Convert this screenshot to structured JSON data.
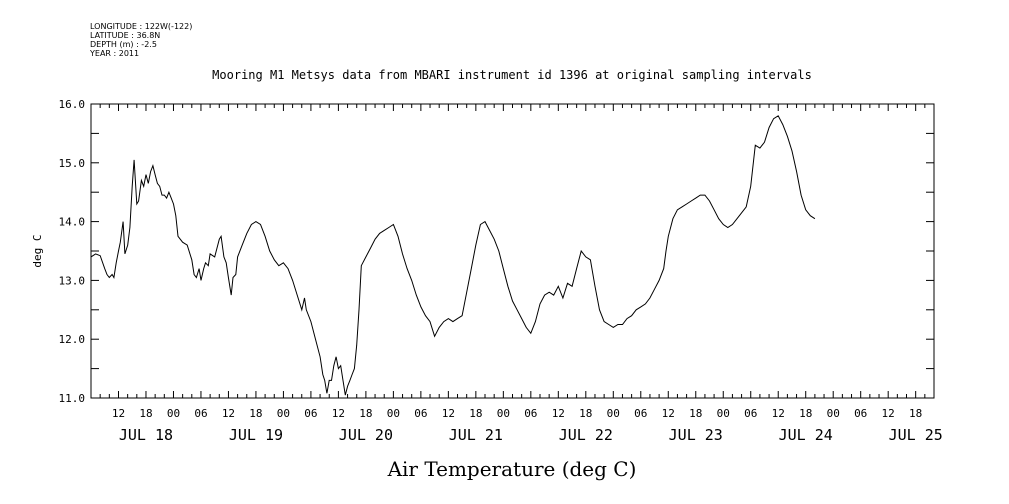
{
  "meta": {
    "longitude": "LONGITUDE : 122W(-122)",
    "latitude": "LATITUDE : 36.8N",
    "depth": "DEPTH (m) : -2.5",
    "year": "YEAR : 2011"
  },
  "chart_data": {
    "type": "line",
    "title": "Mooring M1 Metsys data from MBARI instrument id 1396 at original sampling intervals",
    "xlabel": "Air Temperature (deg C)",
    "ylabel": "deg C",
    "ylim": [
      11.0,
      16.0
    ],
    "xlim_hours": [
      0,
      184
    ],
    "yticks": [
      "11.0",
      "12.0",
      "13.0",
      "14.0",
      "15.0",
      "16.0"
    ],
    "hour_ticks": [
      {
        "h": 6,
        "label": "12"
      },
      {
        "h": 12,
        "label": "18"
      },
      {
        "h": 18,
        "label": "00"
      },
      {
        "h": 24,
        "label": "06"
      },
      {
        "h": 30,
        "label": "12"
      },
      {
        "h": 36,
        "label": "18"
      },
      {
        "h": 42,
        "label": "00"
      },
      {
        "h": 48,
        "label": "06"
      },
      {
        "h": 54,
        "label": "12"
      },
      {
        "h": 60,
        "label": "18"
      },
      {
        "h": 66,
        "label": "00"
      },
      {
        "h": 72,
        "label": "06"
      },
      {
        "h": 78,
        "label": "12"
      },
      {
        "h": 84,
        "label": "18"
      },
      {
        "h": 90,
        "label": "00"
      },
      {
        "h": 96,
        "label": "06"
      },
      {
        "h": 102,
        "label": "12"
      },
      {
        "h": 108,
        "label": "18"
      },
      {
        "h": 114,
        "label": "00"
      },
      {
        "h": 120,
        "label": "06"
      },
      {
        "h": 126,
        "label": "12"
      },
      {
        "h": 132,
        "label": "18"
      },
      {
        "h": 138,
        "label": "00"
      },
      {
        "h": 144,
        "label": "06"
      },
      {
        "h": 150,
        "label": "12"
      },
      {
        "h": 156,
        "label": "18"
      },
      {
        "h": 162,
        "label": "00"
      },
      {
        "h": 168,
        "label": "06"
      },
      {
        "h": 174,
        "label": "12"
      },
      {
        "h": 180,
        "label": "18"
      }
    ],
    "day_labels": [
      {
        "h": 12,
        "label": "JUL 18"
      },
      {
        "h": 36,
        "label": "JUL 19"
      },
      {
        "h": 60,
        "label": "JUL 20"
      },
      {
        "h": 84,
        "label": "JUL 21"
      },
      {
        "h": 108,
        "label": "JUL 22"
      },
      {
        "h": 132,
        "label": "JUL 23"
      },
      {
        "h": 156,
        "label": "JUL 24"
      },
      {
        "h": 180,
        "label": "JUL 25"
      }
    ],
    "series": [
      {
        "color": "#000000",
        "points": [
          [
            0.0,
            13.4
          ],
          [
            1.0,
            13.45
          ],
          [
            2.0,
            13.42
          ],
          [
            3.0,
            13.2
          ],
          [
            3.5,
            13.1
          ],
          [
            4.0,
            13.05
          ],
          [
            4.6,
            13.1
          ],
          [
            5.0,
            13.05
          ],
          [
            5.5,
            13.3
          ],
          [
            6.0,
            13.5
          ],
          [
            6.4,
            13.65
          ],
          [
            7.0,
            14.0
          ],
          [
            7.4,
            13.45
          ],
          [
            8.0,
            13.6
          ],
          [
            8.5,
            13.9
          ],
          [
            9.0,
            14.6
          ],
          [
            9.4,
            15.05
          ],
          [
            10.0,
            14.3
          ],
          [
            10.4,
            14.35
          ],
          [
            11.0,
            14.7
          ],
          [
            11.5,
            14.6
          ],
          [
            12.0,
            14.8
          ],
          [
            12.5,
            14.65
          ],
          [
            13.0,
            14.85
          ],
          [
            13.5,
            14.95
          ],
          [
            14.0,
            14.8
          ],
          [
            14.5,
            14.65
          ],
          [
            15.0,
            14.6
          ],
          [
            15.5,
            14.45
          ],
          [
            16.0,
            14.45
          ],
          [
            16.5,
            14.4
          ],
          [
            17.0,
            14.5
          ],
          [
            17.5,
            14.4
          ],
          [
            18.0,
            14.3
          ],
          [
            18.5,
            14.1
          ],
          [
            19.0,
            13.75
          ],
          [
            20.0,
            13.65
          ],
          [
            21.0,
            13.6
          ],
          [
            22.0,
            13.35
          ],
          [
            22.5,
            13.1
          ],
          [
            23.0,
            13.05
          ],
          [
            23.6,
            13.2
          ],
          [
            24.0,
            13.0
          ],
          [
            24.6,
            13.2
          ],
          [
            25.0,
            13.3
          ],
          [
            25.6,
            13.25
          ],
          [
            26.0,
            13.45
          ],
          [
            27.0,
            13.4
          ],
          [
            28.0,
            13.7
          ],
          [
            28.4,
            13.75
          ],
          [
            29.0,
            13.4
          ],
          [
            29.5,
            13.3
          ],
          [
            30.0,
            13.05
          ],
          [
            30.6,
            12.75
          ],
          [
            31.0,
            13.05
          ],
          [
            31.6,
            13.1
          ],
          [
            32.0,
            13.4
          ],
          [
            33.0,
            13.6
          ],
          [
            34.0,
            13.8
          ],
          [
            35.0,
            13.95
          ],
          [
            36.0,
            14.0
          ],
          [
            37.0,
            13.95
          ],
          [
            38.0,
            13.75
          ],
          [
            39.0,
            13.5
          ],
          [
            40.0,
            13.35
          ],
          [
            41.0,
            13.25
          ],
          [
            42.0,
            13.3
          ],
          [
            43.0,
            13.2
          ],
          [
            44.0,
            13.0
          ],
          [
            45.0,
            12.75
          ],
          [
            46.0,
            12.5
          ],
          [
            46.6,
            12.7
          ],
          [
            47.0,
            12.5
          ],
          [
            48.0,
            12.3
          ],
          [
            49.0,
            12.0
          ],
          [
            50.0,
            11.7
          ],
          [
            50.6,
            11.4
          ],
          [
            51.0,
            11.3
          ],
          [
            51.5,
            11.08
          ],
          [
            52.0,
            11.3
          ],
          [
            52.5,
            11.3
          ],
          [
            53.0,
            11.55
          ],
          [
            53.5,
            11.7
          ],
          [
            54.0,
            11.5
          ],
          [
            54.5,
            11.55
          ],
          [
            55.0,
            11.3
          ],
          [
            55.5,
            11.05
          ],
          [
            56.0,
            11.2
          ],
          [
            56.5,
            11.3
          ],
          [
            57.0,
            11.4
          ],
          [
            57.5,
            11.5
          ],
          [
            58.0,
            11.9
          ],
          [
            58.5,
            12.5
          ],
          [
            59.0,
            13.25
          ],
          [
            60.0,
            13.4
          ],
          [
            61.0,
            13.55
          ],
          [
            62.0,
            13.7
          ],
          [
            63.0,
            13.8
          ],
          [
            64.0,
            13.85
          ],
          [
            65.0,
            13.9
          ],
          [
            66.0,
            13.95
          ],
          [
            67.0,
            13.75
          ],
          [
            68.0,
            13.45
          ],
          [
            69.0,
            13.2
          ],
          [
            70.0,
            13.0
          ],
          [
            71.0,
            12.75
          ],
          [
            72.0,
            12.55
          ],
          [
            73.0,
            12.4
          ],
          [
            74.0,
            12.3
          ],
          [
            75.0,
            12.05
          ],
          [
            76.0,
            12.2
          ],
          [
            77.0,
            12.3
          ],
          [
            78.0,
            12.35
          ],
          [
            79.0,
            12.3
          ],
          [
            80.0,
            12.35
          ],
          [
            81.0,
            12.4
          ],
          [
            82.0,
            12.8
          ],
          [
            83.0,
            13.2
          ],
          [
            84.0,
            13.6
          ],
          [
            85.0,
            13.95
          ],
          [
            86.0,
            14.0
          ],
          [
            87.0,
            13.85
          ],
          [
            88.0,
            13.7
          ],
          [
            89.0,
            13.5
          ],
          [
            90.0,
            13.2
          ],
          [
            91.0,
            12.9
          ],
          [
            92.0,
            12.65
          ],
          [
            93.0,
            12.5
          ],
          [
            94.0,
            12.35
          ],
          [
            95.0,
            12.2
          ],
          [
            96.0,
            12.1
          ],
          [
            97.0,
            12.3
          ],
          [
            98.0,
            12.6
          ],
          [
            99.0,
            12.75
          ],
          [
            100.0,
            12.8
          ],
          [
            101.0,
            12.75
          ],
          [
            102.0,
            12.9
          ],
          [
            103.0,
            12.7
          ],
          [
            104.0,
            12.95
          ],
          [
            105.0,
            12.9
          ],
          [
            106.0,
            13.2
          ],
          [
            107.0,
            13.5
          ],
          [
            108.0,
            13.4
          ],
          [
            109.0,
            13.35
          ],
          [
            110.0,
            12.9
          ],
          [
            111.0,
            12.5
          ],
          [
            112.0,
            12.3
          ],
          [
            113.0,
            12.25
          ],
          [
            114.0,
            12.2
          ],
          [
            115.0,
            12.25
          ],
          [
            116.0,
            12.25
          ],
          [
            117.0,
            12.35
          ],
          [
            118.0,
            12.4
          ],
          [
            119.0,
            12.5
          ],
          [
            120.0,
            12.55
          ],
          [
            121.0,
            12.6
          ],
          [
            122.0,
            12.7
          ],
          [
            123.0,
            12.85
          ],
          [
            124.0,
            13.0
          ],
          [
            125.0,
            13.2
          ],
          [
            125.5,
            13.5
          ],
          [
            126.0,
            13.75
          ],
          [
            127.0,
            14.05
          ],
          [
            128.0,
            14.2
          ],
          [
            129.0,
            14.25
          ],
          [
            130.0,
            14.3
          ],
          [
            131.0,
            14.35
          ],
          [
            132.0,
            14.4
          ],
          [
            133.0,
            14.45
          ],
          [
            134.0,
            14.45
          ],
          [
            135.0,
            14.35
          ],
          [
            136.0,
            14.2
          ],
          [
            137.0,
            14.05
          ],
          [
            138.0,
            13.95
          ],
          [
            139.0,
            13.9
          ],
          [
            140.0,
            13.95
          ],
          [
            141.0,
            14.05
          ],
          [
            142.0,
            14.15
          ],
          [
            143.0,
            14.25
          ],
          [
            144.0,
            14.6
          ],
          [
            145.0,
            15.3
          ],
          [
            146.0,
            15.25
          ],
          [
            147.0,
            15.35
          ],
          [
            148.0,
            15.6
          ],
          [
            149.0,
            15.75
          ],
          [
            150.0,
            15.8
          ],
          [
            151.0,
            15.65
          ],
          [
            152.0,
            15.45
          ],
          [
            153.0,
            15.2
          ],
          [
            154.0,
            14.85
          ],
          [
            155.0,
            14.45
          ],
          [
            156.0,
            14.2
          ],
          [
            157.0,
            14.1
          ],
          [
            158.0,
            14.05
          ]
        ]
      }
    ]
  }
}
